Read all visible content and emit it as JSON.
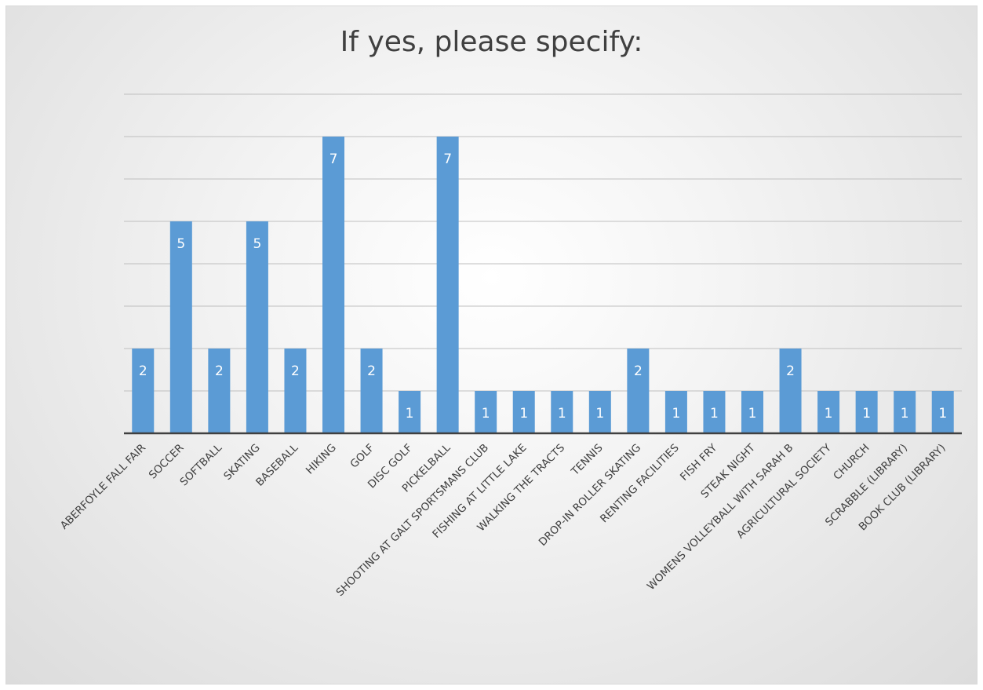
{
  "chart_data": {
    "type": "bar",
    "title": "If yes, please specify:",
    "categories": [
      "ABERFOYLE FALL FAIR",
      "SOCCER",
      "SOFTBALL",
      "SKATING",
      "BASEBALL",
      "HIKING",
      "GOLF",
      "DISC GOLF",
      "PICKELBALL",
      "SHOOTING AT GALT SPORTSMANS CLUB",
      "FISHING AT LITTLE LAKE",
      "WALKING THE TRACTS",
      "TENNIS",
      "DROP-IN ROLLER SKATING",
      "RENTING FACILITIES",
      "FISH FRY",
      "STEAK NIGHT",
      "WOMENS VOLLEYBALL WITH SARAH B",
      "AGRICULTURAL SOCIETY",
      "CHURCH",
      "SCRABBLE (LIBRARY)",
      "BOOK CLUB (LIBRARY)"
    ],
    "values": [
      2,
      5,
      2,
      5,
      2,
      7,
      2,
      1,
      7,
      1,
      1,
      1,
      1,
      2,
      1,
      1,
      1,
      2,
      1,
      1,
      1,
      1
    ],
    "ylim": [
      0,
      8
    ],
    "grid": true,
    "colors": {
      "bar": "#5b9bd5",
      "grid": "#bfbfbf",
      "axis": "#404040"
    }
  }
}
